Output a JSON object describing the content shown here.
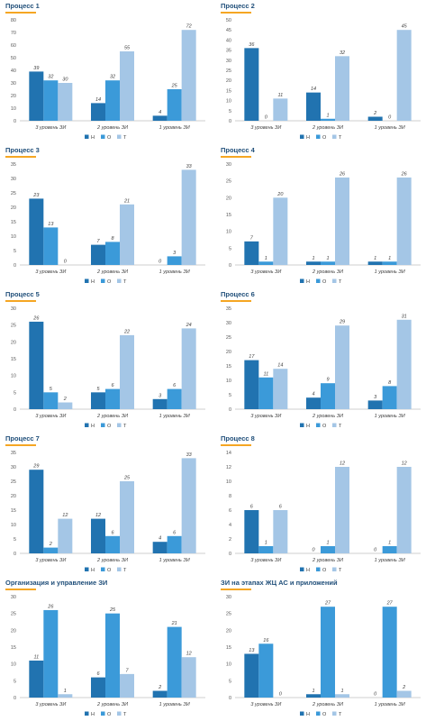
{
  "legend": {
    "labels": [
      "Н",
      "О",
      "Т"
    ]
  },
  "colors": {
    "Н": "#2173b0",
    "О": "#3b9ad9",
    "Т": "#a4c6e6",
    "title": "#1f4e79",
    "accent": "#f5a623"
  },
  "chart_data": [
    {
      "type": "bar",
      "title": "Процесс 1",
      "categories": [
        "3 уровень ЗИ",
        "2 уровень ЗИ",
        "1 уровень ЗИ"
      ],
      "series": [
        {
          "name": "Н",
          "values": [
            39,
            14,
            4
          ]
        },
        {
          "name": "О",
          "values": [
            32,
            32,
            25
          ]
        },
        {
          "name": "Т",
          "values": [
            30,
            55,
            72
          ]
        }
      ],
      "ylim": [
        0,
        80
      ],
      "yticks": [
        0,
        10,
        20,
        30,
        40,
        50,
        60,
        70,
        80
      ],
      "legend": "bottom",
      "grid": false
    },
    {
      "type": "bar",
      "title": "Процесс 2",
      "categories": [
        "3 уровень ЗИ",
        "2 уровень ЗИ",
        "1 уровень ЗИ"
      ],
      "series": [
        {
          "name": "Н",
          "values": [
            36,
            14,
            2
          ]
        },
        {
          "name": "О",
          "values": [
            0,
            1,
            0
          ]
        },
        {
          "name": "Т",
          "values": [
            11,
            32,
            45
          ]
        }
      ],
      "ylim": [
        0,
        50
      ],
      "yticks": [
        0,
        5,
        10,
        15,
        20,
        25,
        30,
        35,
        40,
        45,
        50
      ],
      "legend": "bottom",
      "grid": false
    },
    {
      "type": "bar",
      "title": "Процесс 3",
      "categories": [
        "3 уровень ЗИ",
        "2 уровень ЗИ",
        "1 уровень ЗИ"
      ],
      "series": [
        {
          "name": "Н",
          "values": [
            23,
            7,
            0
          ]
        },
        {
          "name": "О",
          "values": [
            13,
            8,
            3
          ]
        },
        {
          "name": "Т",
          "values": [
            0,
            21,
            33
          ]
        }
      ],
      "ylim": [
        0,
        35
      ],
      "yticks": [
        0,
        5,
        10,
        15,
        20,
        25,
        30,
        35
      ],
      "legend": "bottom",
      "grid": false
    },
    {
      "type": "bar",
      "title": "Процесс 4",
      "categories": [
        "3 уровень ЗИ",
        "2 уровень ЗИ",
        "1 уровень ЗИ"
      ],
      "series": [
        {
          "name": "Н",
          "values": [
            7,
            1,
            1
          ]
        },
        {
          "name": "О",
          "values": [
            1,
            1,
            1
          ]
        },
        {
          "name": "Т",
          "values": [
            20,
            26,
            26
          ]
        }
      ],
      "ylim": [
        0,
        30
      ],
      "yticks": [
        0,
        5,
        10,
        15,
        20,
        25,
        30
      ],
      "legend": "bottom",
      "grid": false
    },
    {
      "type": "bar",
      "title": "Процесс 5",
      "categories": [
        "3 уровень ЗИ",
        "2 уровень ЗИ",
        "1 уровень ЗИ"
      ],
      "series": [
        {
          "name": "Н",
          "values": [
            26,
            5,
            3
          ]
        },
        {
          "name": "О",
          "values": [
            5,
            6,
            6
          ]
        },
        {
          "name": "Т",
          "values": [
            2,
            22,
            24
          ]
        }
      ],
      "ylim": [
        0,
        30
      ],
      "yticks": [
        0,
        5,
        10,
        15,
        20,
        25,
        30
      ],
      "legend": "bottom",
      "grid": false
    },
    {
      "type": "bar",
      "title": "Процесс 6",
      "categories": [
        "3 уровень ЗИ",
        "2 уровень ЗИ",
        "1 уровень ЗИ"
      ],
      "series": [
        {
          "name": "Н",
          "values": [
            17,
            4,
            3
          ]
        },
        {
          "name": "О",
          "values": [
            11,
            9,
            8
          ]
        },
        {
          "name": "Т",
          "values": [
            14,
            29,
            31
          ]
        }
      ],
      "ylim": [
        0,
        35
      ],
      "yticks": [
        0,
        5,
        10,
        15,
        20,
        25,
        30,
        35
      ],
      "legend": "bottom",
      "grid": false
    },
    {
      "type": "bar",
      "title": "Процесс 7",
      "categories": [
        "3 уровень ЗИ",
        "2 уровень ЗИ",
        "1 уровень ЗИ"
      ],
      "series": [
        {
          "name": "Н",
          "values": [
            29,
            12,
            4
          ]
        },
        {
          "name": "О",
          "values": [
            2,
            6,
            6
          ]
        },
        {
          "name": "Т",
          "values": [
            12,
            25,
            33
          ]
        }
      ],
      "ylim": [
        0,
        35
      ],
      "yticks": [
        0,
        5,
        10,
        15,
        20,
        25,
        30,
        35
      ],
      "legend": "bottom",
      "grid": false
    },
    {
      "type": "bar",
      "title": "Процесс 8",
      "categories": [
        "3 уровень ЗИ",
        "2 уровень ЗИ",
        "1 уровень ЗИ"
      ],
      "series": [
        {
          "name": "Н",
          "values": [
            6,
            0,
            0
          ]
        },
        {
          "name": "О",
          "values": [
            1,
            1,
            1
          ]
        },
        {
          "name": "Т",
          "values": [
            6,
            12,
            12
          ]
        }
      ],
      "ylim": [
        0,
        14
      ],
      "yticks": [
        0,
        2,
        4,
        6,
        8,
        10,
        12,
        14
      ],
      "legend": "bottom",
      "grid": false
    },
    {
      "type": "bar",
      "title": "Организация и управление ЗИ",
      "categories": [
        "3 уровень ЗИ",
        "2 уровень ЗИ",
        "1 уровень ЗИ"
      ],
      "series": [
        {
          "name": "Н",
          "values": [
            11,
            6,
            2
          ]
        },
        {
          "name": "О",
          "values": [
            26,
            25,
            21
          ]
        },
        {
          "name": "Т",
          "values": [
            1,
            7,
            12
          ]
        }
      ],
      "ylim": [
        0,
        30
      ],
      "yticks": [
        0,
        5,
        10,
        15,
        20,
        25,
        30
      ],
      "legend": "bottom",
      "grid": false
    },
    {
      "type": "bar",
      "title": "ЗИ на этапах ЖЦ АС и приложений",
      "categories": [
        "3 уровень ЗИ",
        "2 уровень ЗИ",
        "1 уровень ЗИ"
      ],
      "series": [
        {
          "name": "Н",
          "values": [
            13,
            1,
            0
          ]
        },
        {
          "name": "О",
          "values": [
            16,
            27,
            27
          ]
        },
        {
          "name": "Т",
          "values": [
            0,
            1,
            2
          ]
        }
      ],
      "ylim": [
        0,
        30
      ],
      "yticks": [
        0,
        5,
        10,
        15,
        20,
        25,
        30
      ],
      "legend": "bottom",
      "grid": false
    }
  ]
}
